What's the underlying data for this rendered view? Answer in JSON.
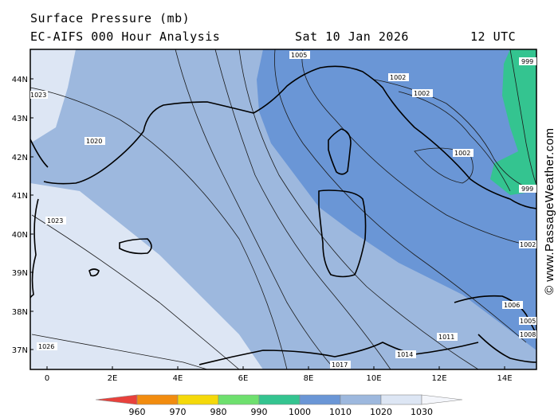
{
  "header": {
    "title": "Surface Pressure (mb)",
    "model": "EC-AIFS 000 Hour Analysis",
    "date": "Sat 10 Jan 2026",
    "time": "12 UTC"
  },
  "axes": {
    "lat_labels": [
      "44N",
      "43N",
      "42N",
      "41N",
      "40N",
      "39N",
      "38N",
      "37N"
    ],
    "lon_labels": [
      "0",
      "2E",
      "4E",
      "6E",
      "8E",
      "10E",
      "12E",
      "14E"
    ]
  },
  "isobar_labels": [
    "1005",
    "1002",
    "1002",
    "1002",
    "999",
    "999",
    "1002",
    "1006",
    "1005",
    "1008",
    "1011",
    "1014",
    "1017",
    "1020",
    "1023",
    "1023",
    "1026"
  ],
  "legend": {
    "values": [
      "960",
      "970",
      "980",
      "990",
      "1000",
      "1010",
      "1020",
      "1030"
    ],
    "colors": [
      "#e8413c",
      "#f28c0f",
      "#f5d90a",
      "#6ee06e",
      "#34c490",
      "#6a96d6",
      "#9db8de",
      "#dde6f4"
    ]
  },
  "credit": "© www.PassageWeather.com",
  "colors": {
    "band_1000": "#6a96d6",
    "band_1010": "#9db8de",
    "band_1020": "#dde6f4",
    "band_990": "#34c490",
    "coast": "#000000"
  }
}
